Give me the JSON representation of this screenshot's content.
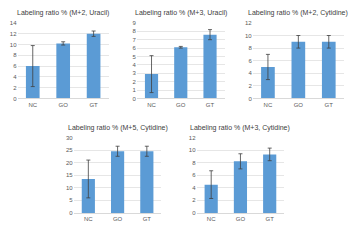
{
  "chart_data": [
    {
      "type": "bar",
      "title": "Labeling ratio % (M+2, Uracil)",
      "categories": [
        "NC",
        "GO",
        "GT"
      ],
      "values": [
        6,
        10.2,
        12
      ],
      "errors": [
        3.8,
        0.3,
        0.5
      ],
      "color": "#5b9bd5",
      "ylim": [
        0,
        14
      ],
      "yticks": [
        0,
        2,
        4,
        6,
        8,
        10,
        12,
        14
      ],
      "grid": true
    },
    {
      "type": "bar",
      "title": "Labeling ratio % (M+3, Uracil)",
      "categories": [
        "NC",
        "GO",
        "GT"
      ],
      "values": [
        2.9,
        6.1,
        7.6
      ],
      "errors": [
        2.2,
        0.1,
        0.6
      ],
      "color": "#5b9bd5",
      "ylim": [
        0,
        9
      ],
      "yticks": [
        0,
        1,
        2,
        3,
        4,
        5,
        6,
        7,
        8,
        9
      ],
      "grid": true
    },
    {
      "type": "bar",
      "title": "Labeling ratio % (M+2, Cytidine)",
      "categories": [
        "NC",
        "GO",
        "GT"
      ],
      "values": [
        5,
        9,
        9
      ],
      "errors": [
        2,
        1,
        1
      ],
      "color": "#5b9bd5",
      "ylim": [
        0,
        12
      ],
      "yticks": [
        0,
        2,
        4,
        6,
        8,
        10,
        12
      ],
      "grid": true
    },
    {
      "type": "bar",
      "title": "Labeling ratio % (M+5, Cytidine)",
      "categories": [
        "NC",
        "GO",
        "GT"
      ],
      "values": [
        13.5,
        24.5,
        24.5
      ],
      "errors": [
        7.5,
        2,
        2
      ],
      "color": "#5b9bd5",
      "ylim": [
        0,
        30
      ],
      "yticks": [
        0,
        5,
        10,
        15,
        20,
        25,
        30
      ],
      "grid": true
    },
    {
      "type": "bar",
      "title": "Labeling ratio % (M+3, Cytidine)",
      "categories": [
        "NC",
        "GO",
        "GT"
      ],
      "values": [
        4.5,
        8.2,
        9.3
      ],
      "errors": [
        2.2,
        1.2,
        1
      ],
      "color": "#5b9bd5",
      "ylim": [
        0,
        12
      ],
      "yticks": [
        0,
        2,
        4,
        6,
        8,
        10,
        12
      ],
      "grid": true
    }
  ]
}
